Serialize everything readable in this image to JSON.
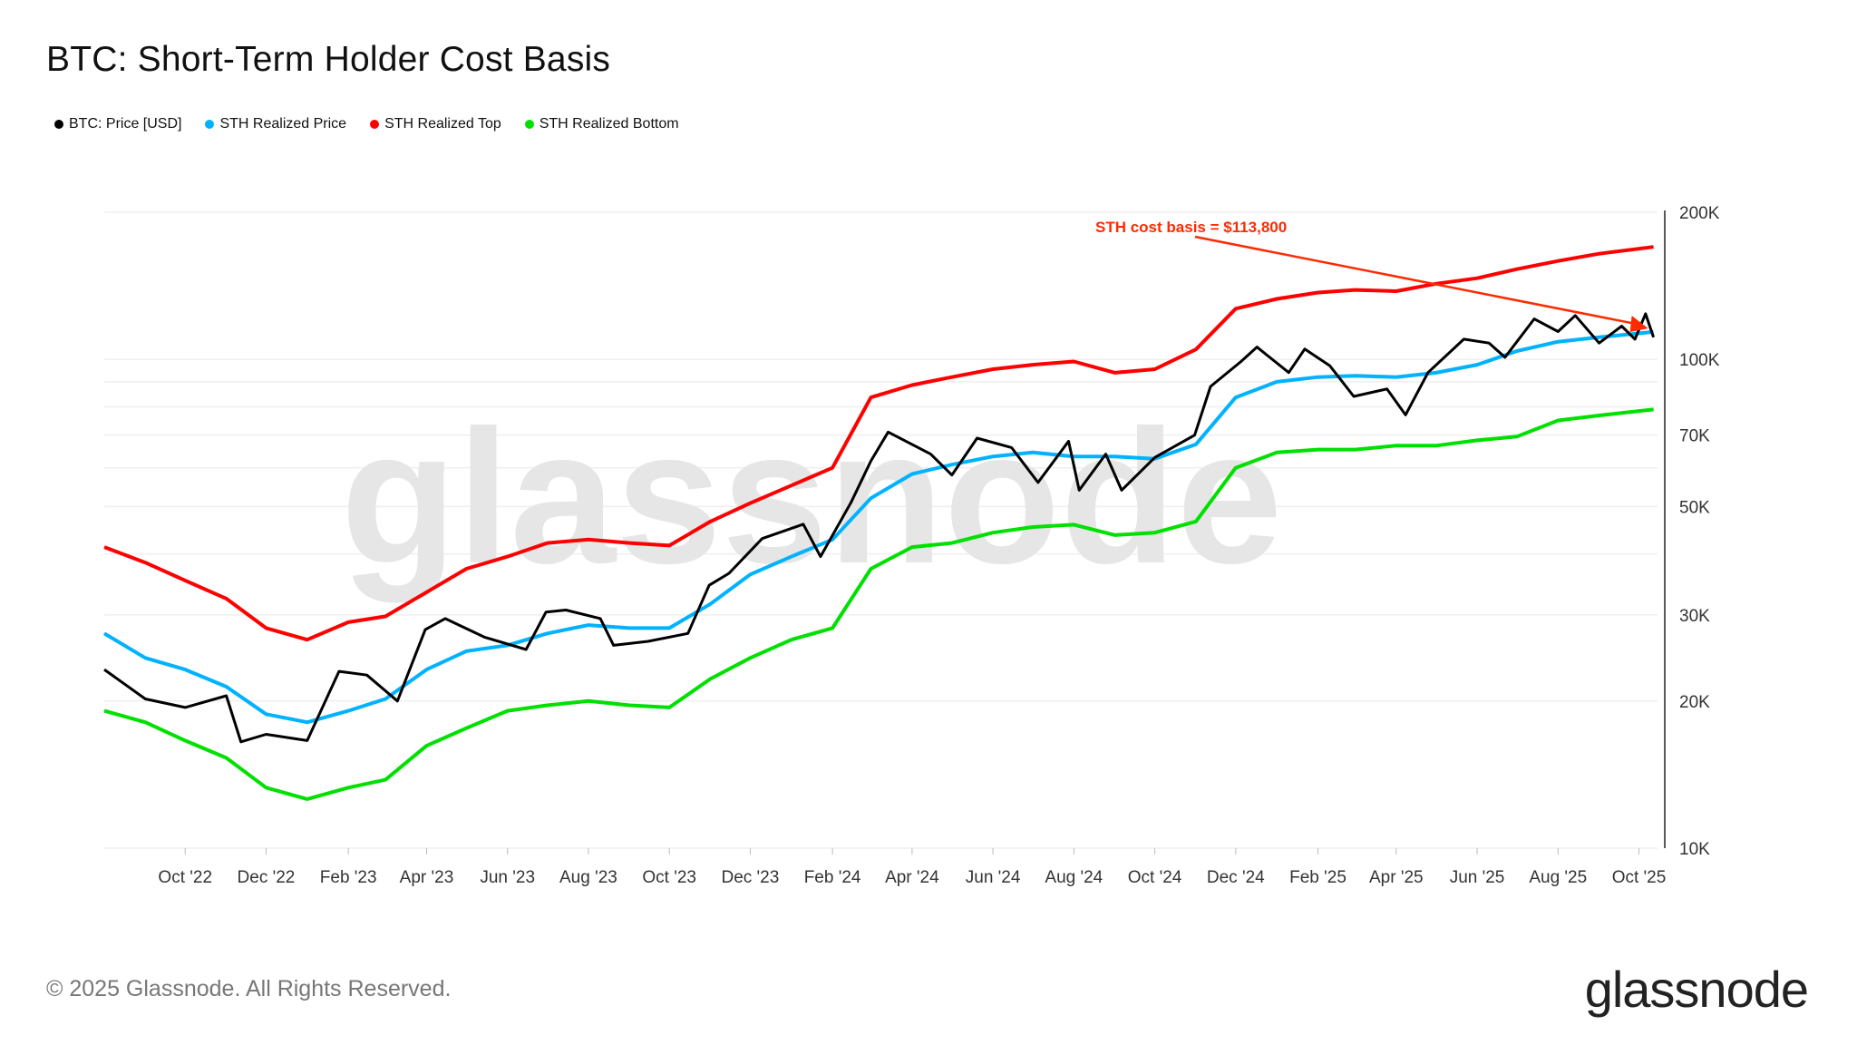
{
  "chart_data": {
    "type": "line",
    "title": "BTC: Short-Term Holder Cost Basis",
    "xlabel": "",
    "ylabel": "",
    "y_scale": "log",
    "ylim": [
      10000,
      200000
    ],
    "xlim": [
      "2022-08-01",
      "2025-10-15"
    ],
    "y_ticks": [
      {
        "v": 10000,
        "label": "10K"
      },
      {
        "v": 20000,
        "label": "20K"
      },
      {
        "v": 30000,
        "label": "30K"
      },
      {
        "v": 50000,
        "label": "50K"
      },
      {
        "v": 70000,
        "label": "70K"
      },
      {
        "v": 100000,
        "label": "100K"
      },
      {
        "v": 200000,
        "label": "200K"
      }
    ],
    "y_gridlines": [
      10000,
      20000,
      30000,
      40000,
      50000,
      60000,
      70000,
      80000,
      90000,
      100000,
      200000
    ],
    "x_ticks": [
      {
        "d": "2022-10-01",
        "label": "Oct '22"
      },
      {
        "d": "2022-12-01",
        "label": "Dec '22"
      },
      {
        "d": "2023-02-01",
        "label": "Feb '23"
      },
      {
        "d": "2023-04-01",
        "label": "Apr '23"
      },
      {
        "d": "2023-06-01",
        "label": "Jun '23"
      },
      {
        "d": "2023-08-01",
        "label": "Aug '23"
      },
      {
        "d": "2023-10-01",
        "label": "Oct '23"
      },
      {
        "d": "2023-12-01",
        "label": "Dec '23"
      },
      {
        "d": "2024-02-01",
        "label": "Feb '24"
      },
      {
        "d": "2024-04-01",
        "label": "Apr '24"
      },
      {
        "d": "2024-06-01",
        "label": "Jun '24"
      },
      {
        "d": "2024-08-01",
        "label": "Aug '24"
      },
      {
        "d": "2024-10-01",
        "label": "Oct '24"
      },
      {
        "d": "2024-12-01",
        "label": "Dec '24"
      },
      {
        "d": "2025-02-01",
        "label": "Feb '25"
      },
      {
        "d": "2025-04-01",
        "label": "Apr '25"
      },
      {
        "d": "2025-06-01",
        "label": "Jun '25"
      },
      {
        "d": "2025-08-01",
        "label": "Aug '25"
      },
      {
        "d": "2025-10-01",
        "label": "Oct '25"
      }
    ],
    "grid": true,
    "legend_position": "top-left",
    "series": [
      {
        "name": "BTC: Price [USD]",
        "color": "#000000",
        "points": [
          [
            "2022-08-01",
            23200
          ],
          [
            "2022-09-01",
            20200
          ],
          [
            "2022-10-01",
            19400
          ],
          [
            "2022-11-01",
            20500
          ],
          [
            "2022-11-12",
            16500
          ],
          [
            "2022-12-01",
            17100
          ],
          [
            "2023-01-01",
            16600
          ],
          [
            "2023-01-25",
            23000
          ],
          [
            "2023-02-15",
            22600
          ],
          [
            "2023-03-10",
            20000
          ],
          [
            "2023-03-31",
            28000
          ],
          [
            "2023-04-15",
            29500
          ],
          [
            "2023-05-15",
            27000
          ],
          [
            "2023-06-15",
            25500
          ],
          [
            "2023-06-30",
            30400
          ],
          [
            "2023-07-15",
            30700
          ],
          [
            "2023-08-10",
            29500
          ],
          [
            "2023-08-20",
            26000
          ],
          [
            "2023-09-15",
            26500
          ],
          [
            "2023-10-15",
            27500
          ],
          [
            "2023-10-31",
            34500
          ],
          [
            "2023-11-15",
            36500
          ],
          [
            "2023-12-10",
            43000
          ],
          [
            "2024-01-10",
            46000
          ],
          [
            "2024-01-23",
            39500
          ],
          [
            "2024-02-15",
            51000
          ],
          [
            "2024-03-01",
            62000
          ],
          [
            "2024-03-14",
            71000
          ],
          [
            "2024-04-15",
            64000
          ],
          [
            "2024-05-01",
            58000
          ],
          [
            "2024-05-20",
            69000
          ],
          [
            "2024-06-15",
            66000
          ],
          [
            "2024-07-05",
            56000
          ],
          [
            "2024-07-28",
            68000
          ],
          [
            "2024-08-05",
            54000
          ],
          [
            "2024-08-25",
            64000
          ],
          [
            "2024-09-06",
            54000
          ],
          [
            "2024-10-01",
            63000
          ],
          [
            "2024-10-31",
            70000
          ],
          [
            "2024-11-12",
            88000
          ],
          [
            "2024-12-05",
            99000
          ],
          [
            "2024-12-17",
            106000
          ],
          [
            "2025-01-10",
            94000
          ],
          [
            "2025-01-22",
            105000
          ],
          [
            "2025-02-10",
            97000
          ],
          [
            "2025-02-28",
            84000
          ],
          [
            "2025-03-25",
            87000
          ],
          [
            "2025-04-08",
            77000
          ],
          [
            "2025-04-25",
            94000
          ],
          [
            "2025-05-22",
            110000
          ],
          [
            "2025-06-10",
            108000
          ],
          [
            "2025-06-22",
            101000
          ],
          [
            "2025-07-14",
            121000
          ],
          [
            "2025-08-01",
            114000
          ],
          [
            "2025-08-14",
            123000
          ],
          [
            "2025-09-01",
            108000
          ],
          [
            "2025-09-18",
            117000
          ],
          [
            "2025-09-28",
            110000
          ],
          [
            "2025-10-06",
            124000
          ],
          [
            "2025-10-12",
            111000
          ]
        ]
      },
      {
        "name": "STH Realized Price",
        "color": "#00b2ff",
        "points": [
          [
            "2022-08-01",
            27500
          ],
          [
            "2022-09-01",
            24500
          ],
          [
            "2022-10-01",
            23200
          ],
          [
            "2022-11-01",
            21400
          ],
          [
            "2022-12-01",
            18800
          ],
          [
            "2023-01-01",
            18100
          ],
          [
            "2023-02-01",
            19100
          ],
          [
            "2023-03-01",
            20200
          ],
          [
            "2023-04-01",
            23200
          ],
          [
            "2023-05-01",
            25300
          ],
          [
            "2023-06-01",
            26000
          ],
          [
            "2023-07-01",
            27500
          ],
          [
            "2023-08-01",
            28600
          ],
          [
            "2023-09-01",
            28200
          ],
          [
            "2023-10-01",
            28200
          ],
          [
            "2023-11-01",
            31600
          ],
          [
            "2023-12-01",
            36300
          ],
          [
            "2024-01-01",
            39500
          ],
          [
            "2024-02-01",
            42800
          ],
          [
            "2024-03-01",
            52000
          ],
          [
            "2024-04-01",
            58300
          ],
          [
            "2024-05-01",
            60900
          ],
          [
            "2024-06-01",
            63300
          ],
          [
            "2024-07-01",
            64500
          ],
          [
            "2024-08-01",
            63300
          ],
          [
            "2024-09-01",
            63300
          ],
          [
            "2024-10-01",
            62600
          ],
          [
            "2024-11-01",
            67000
          ],
          [
            "2024-12-01",
            83600
          ],
          [
            "2025-01-01",
            90000
          ],
          [
            "2025-02-01",
            92000
          ],
          [
            "2025-03-01",
            92600
          ],
          [
            "2025-04-01",
            92000
          ],
          [
            "2025-05-01",
            93900
          ],
          [
            "2025-06-01",
            97500
          ],
          [
            "2025-07-01",
            104000
          ],
          [
            "2025-08-01",
            108700
          ],
          [
            "2025-09-01",
            111000
          ],
          [
            "2025-10-12",
            113800
          ]
        ]
      },
      {
        "name": "STH Realized Top",
        "color": "#ff0000",
        "points": [
          [
            "2022-08-01",
            41300
          ],
          [
            "2022-09-01",
            38400
          ],
          [
            "2022-10-01",
            35300
          ],
          [
            "2022-11-01",
            32400
          ],
          [
            "2022-12-01",
            28200
          ],
          [
            "2023-01-01",
            26700
          ],
          [
            "2023-02-01",
            29000
          ],
          [
            "2023-03-01",
            29800
          ],
          [
            "2023-04-01",
            33400
          ],
          [
            "2023-05-01",
            37300
          ],
          [
            "2023-06-01",
            39500
          ],
          [
            "2023-07-01",
            42100
          ],
          [
            "2023-08-01",
            42800
          ],
          [
            "2023-09-01",
            42100
          ],
          [
            "2023-10-01",
            41600
          ],
          [
            "2023-11-01",
            46600
          ],
          [
            "2023-12-01",
            50800
          ],
          [
            "2024-01-01",
            55200
          ],
          [
            "2024-02-01",
            60000
          ],
          [
            "2024-03-01",
            83600
          ],
          [
            "2024-04-01",
            88600
          ],
          [
            "2024-05-01",
            92000
          ],
          [
            "2024-06-01",
            95500
          ],
          [
            "2024-07-01",
            97500
          ],
          [
            "2024-08-01",
            99000
          ],
          [
            "2024-09-01",
            93900
          ],
          [
            "2024-10-01",
            95500
          ],
          [
            "2024-11-01",
            104800
          ],
          [
            "2024-12-01",
            127000
          ],
          [
            "2025-01-01",
            133000
          ],
          [
            "2025-02-01",
            137000
          ],
          [
            "2025-03-01",
            138700
          ],
          [
            "2025-04-01",
            137900
          ],
          [
            "2025-05-01",
            142800
          ],
          [
            "2025-06-01",
            146600
          ],
          [
            "2025-07-01",
            153000
          ],
          [
            "2025-08-01",
            159000
          ],
          [
            "2025-09-01",
            164500
          ],
          [
            "2025-10-12",
            169900
          ]
        ]
      },
      {
        "name": "STH Realized Bottom",
        "color": "#00e000",
        "points": [
          [
            "2022-08-01",
            19100
          ],
          [
            "2022-09-01",
            18100
          ],
          [
            "2022-10-01",
            16600
          ],
          [
            "2022-11-01",
            15300
          ],
          [
            "2022-12-01",
            13300
          ],
          [
            "2023-01-01",
            12600
          ],
          [
            "2023-02-01",
            13300
          ],
          [
            "2023-03-01",
            13800
          ],
          [
            "2023-04-01",
            16200
          ],
          [
            "2023-05-01",
            17600
          ],
          [
            "2023-06-01",
            19100
          ],
          [
            "2023-07-01",
            19600
          ],
          [
            "2023-08-01",
            20000
          ],
          [
            "2023-09-01",
            19600
          ],
          [
            "2023-10-01",
            19400
          ],
          [
            "2023-11-01",
            22200
          ],
          [
            "2023-12-01",
            24500
          ],
          [
            "2024-01-01",
            26700
          ],
          [
            "2024-02-01",
            28200
          ],
          [
            "2024-03-01",
            37300
          ],
          [
            "2024-04-01",
            41300
          ],
          [
            "2024-05-01",
            42100
          ],
          [
            "2024-06-01",
            44200
          ],
          [
            "2024-07-01",
            45400
          ],
          [
            "2024-08-01",
            45900
          ],
          [
            "2024-09-01",
            43700
          ],
          [
            "2024-10-01",
            44200
          ],
          [
            "2024-11-01",
            46600
          ],
          [
            "2024-12-01",
            60000
          ],
          [
            "2025-01-01",
            64500
          ],
          [
            "2025-02-01",
            65400
          ],
          [
            "2025-03-01",
            65400
          ],
          [
            "2025-04-01",
            66600
          ],
          [
            "2025-05-01",
            66600
          ],
          [
            "2025-06-01",
            68300
          ],
          [
            "2025-07-01",
            69500
          ],
          [
            "2025-08-01",
            75000
          ],
          [
            "2025-09-01",
            76800
          ],
          [
            "2025-10-12",
            79000
          ]
        ]
      }
    ],
    "annotations": [
      {
        "text": "STH cost basis = $113,800",
        "color": "#ff2a00",
        "target": [
          "2025-10-12",
          113800
        ]
      }
    ],
    "watermark": "glassnode"
  },
  "legend": [
    {
      "label": "BTC: Price [USD]",
      "color": "#000000"
    },
    {
      "label": "STH Realized Price",
      "color": "#00b2ff"
    },
    {
      "label": "STH Realized Top",
      "color": "#ff0000"
    },
    {
      "label": "STH Realized Bottom",
      "color": "#00e000"
    }
  ],
  "footer": {
    "copyright": "© 2025 Glassnode. All Rights Reserved.",
    "logo": "glassnode"
  }
}
